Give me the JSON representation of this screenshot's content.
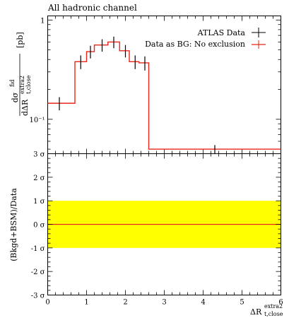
{
  "title": "All hadronic channel",
  "colors": {
    "data": "#000000",
    "prediction": "#e8261a",
    "band": "#ffff00"
  },
  "chart_data": [
    {
      "type": "line",
      "title": "All hadronic channel",
      "xlabel_main": "ΔR",
      "xlabel_sup": "extra2",
      "xlabel_sub": "t,close",
      "ylabel_num": "dσ",
      "ylabel_num_sup": "fid",
      "ylabel_den": "dΔR",
      "ylabel_den_sup": "extra2",
      "ylabel_den_sub": "t,close",
      "ylabel_unit": "[pb]",
      "yscale": "log",
      "ylim": [
        0.045,
        1.1
      ],
      "xlim": [
        0,
        6
      ],
      "y_ticks": [
        {
          "value": 1,
          "label": "1"
        },
        {
          "value": 0.1,
          "label": "10⁻¹"
        }
      ],
      "legend_position": "top-right",
      "series": [
        {
          "name": "ATLAS Data",
          "style": "points",
          "x": [
            0.3,
            0.85,
            1.1,
            1.4,
            1.7,
            2.0,
            2.25,
            2.5,
            4.3
          ],
          "y": [
            0.145,
            0.38,
            0.48,
            0.56,
            0.6,
            0.49,
            0.38,
            0.37,
            0.05
          ],
          "yerr": [
            0.022,
            0.06,
            0.07,
            0.08,
            0.08,
            0.07,
            0.06,
            0.06,
            0.005
          ]
        },
        {
          "name": "Data as BG: No exclusion",
          "style": "step",
          "bin_edges": [
            0,
            0.7,
            1.0,
            1.2,
            1.55,
            1.85,
            2.1,
            2.35,
            2.6,
            6.0
          ],
          "values": [
            0.145,
            0.38,
            0.48,
            0.56,
            0.6,
            0.49,
            0.38,
            0.37,
            0.05
          ]
        }
      ]
    },
    {
      "type": "line",
      "ylabel": "(Bkgd+BSM)/Data",
      "xlabel_main": "ΔR",
      "xlabel_sup": "extra2",
      "xlabel_sub": "t,close",
      "xlim": [
        0,
        6
      ],
      "ylim": [
        -3,
        3
      ],
      "x_ticks": [
        0,
        1,
        2,
        3,
        4,
        5,
        6
      ],
      "y_ticks": [
        {
          "value": 3,
          "label": "3 σ"
        },
        {
          "value": 2,
          "label": "2 σ"
        },
        {
          "value": 1,
          "label": "1 σ"
        },
        {
          "value": 0,
          "label": "0 σ"
        },
        {
          "value": -1,
          "label": "-1 σ"
        },
        {
          "value": -2,
          "label": "-2 σ"
        },
        {
          "value": -3,
          "label": "-3 σ"
        }
      ],
      "band": {
        "lower": -1,
        "upper": 1
      },
      "series": [
        {
          "name": "Data as BG: No exclusion",
          "x": [
            0,
            6
          ],
          "y": [
            0,
            0
          ]
        }
      ]
    }
  ]
}
